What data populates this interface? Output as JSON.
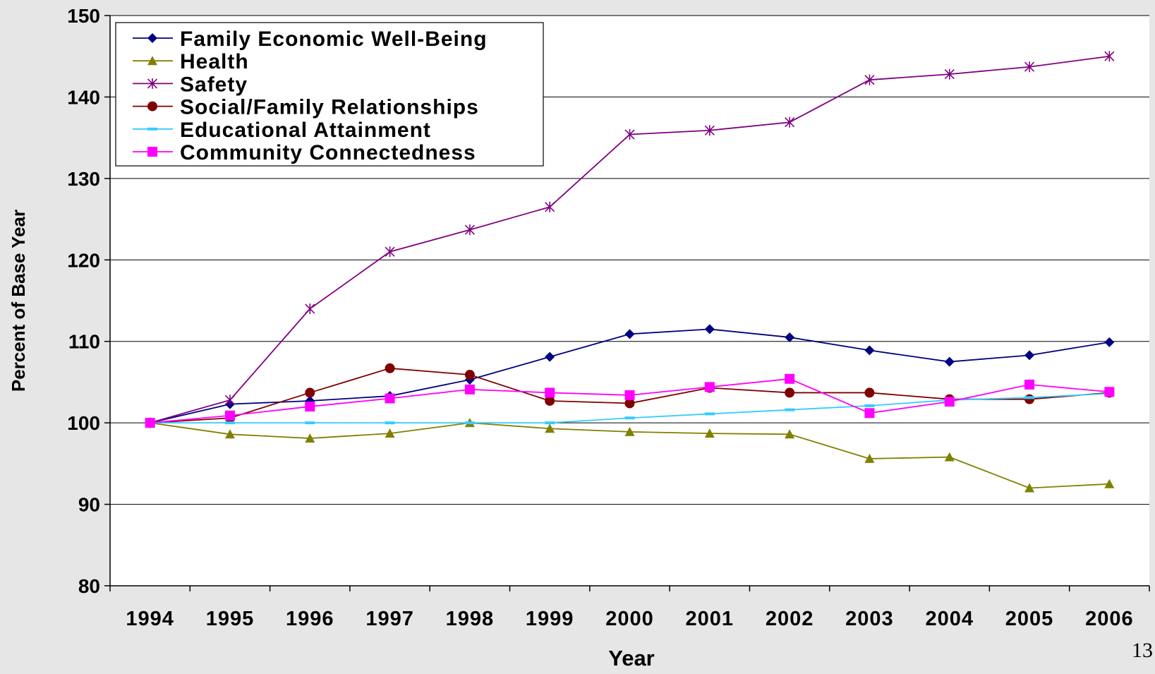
{
  "page_number": "13",
  "chart_data": {
    "type": "line",
    "title": "",
    "xlabel": "Year",
    "ylabel": "Percent of Base Year",
    "ylim": [
      80,
      150
    ],
    "yticks": [
      80,
      90,
      100,
      110,
      120,
      130,
      140,
      150
    ],
    "grid": true,
    "legend_position": "top-left",
    "categories": [
      "1994",
      "1995",
      "1996",
      "1997",
      "1998",
      "1999",
      "2000",
      "2001",
      "2002",
      "2003",
      "2004",
      "2005",
      "2006"
    ],
    "series": [
      {
        "name": "Family Economic Well-Being",
        "color": "#000080",
        "marker": "diamond",
        "values": [
          100,
          102.3,
          102.7,
          103.3,
          105.3,
          108.1,
          110.9,
          111.5,
          110.5,
          108.9,
          107.5,
          108.3,
          109.9
        ]
      },
      {
        "name": "Health",
        "color": "#808000",
        "marker": "triangle",
        "values": [
          100,
          98.6,
          98.1,
          98.7,
          100,
          99.3,
          98.9,
          98.7,
          98.6,
          95.6,
          95.8,
          92,
          92.5
        ]
      },
      {
        "name": "Safety",
        "color": "#800080",
        "marker": "asterisk",
        "values": [
          100,
          102.8,
          114,
          121,
          123.7,
          126.5,
          135.4,
          135.9,
          136.9,
          142.1,
          142.8,
          143.7,
          145
        ]
      },
      {
        "name": "Social/Family Relationships",
        "color": "#800000",
        "marker": "circle",
        "values": [
          100,
          100.6,
          103.7,
          106.7,
          105.9,
          102.7,
          102.4,
          104.3,
          103.7,
          103.7,
          102.9,
          102.9,
          103.7
        ]
      },
      {
        "name": "Educational Attainment",
        "color": "#33ccff",
        "marker": "dash",
        "values": [
          100,
          100,
          100,
          100,
          100,
          100,
          100.6,
          101.1,
          101.6,
          102.1,
          102.8,
          103.1,
          103.6
        ]
      },
      {
        "name": "Community Connectedness",
        "color": "#ff00ff",
        "marker": "square",
        "values": [
          100,
          100.9,
          102,
          103,
          104.1,
          103.7,
          103.4,
          104.4,
          105.4,
          101.2,
          102.6,
          104.7,
          103.8
        ]
      }
    ]
  }
}
